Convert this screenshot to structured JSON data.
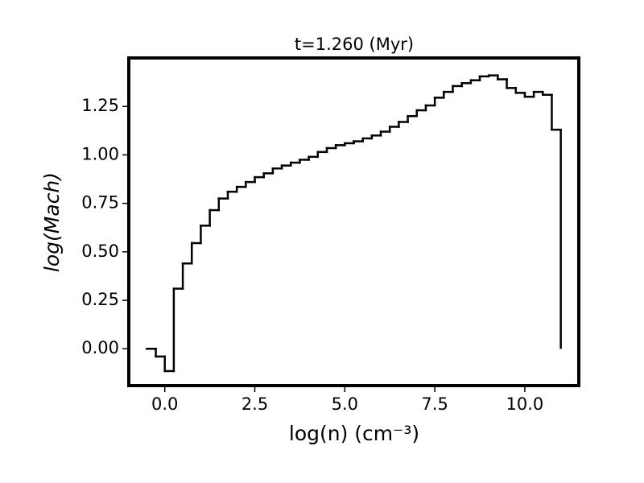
{
  "chart_data": {
    "type": "histogram",
    "title": "t=1.260 (Myr)",
    "xlabel": "log(n) (cm⁻³)",
    "ylabel": "log(Mach)",
    "bins": [
      -0.5,
      -0.25,
      0,
      0.25,
      0.5,
      0.75,
      1,
      1.25,
      1.5,
      1.75,
      2,
      2.25,
      2.5,
      2.75,
      3,
      3.25,
      3.5,
      3.75,
      4,
      4.25,
      4.5,
      4.75,
      5,
      5.25,
      5.5,
      5.75,
      6,
      6.25,
      6.5,
      6.75,
      7,
      7.25,
      7.5,
      7.75,
      8,
      8.25,
      8.5,
      8.75,
      9,
      9.25,
      9.5,
      9.75,
      10,
      10.25,
      10.5,
      10.75,
      11
    ],
    "values": [
      0.0,
      -0.04,
      -0.115,
      0.31,
      0.44,
      0.545,
      0.635,
      0.715,
      0.775,
      0.81,
      0.835,
      0.86,
      0.885,
      0.905,
      0.93,
      0.945,
      0.96,
      0.975,
      0.99,
      1.015,
      1.035,
      1.05,
      1.06,
      1.07,
      1.085,
      1.1,
      1.12,
      1.145,
      1.17,
      1.2,
      1.23,
      1.255,
      1.295,
      1.325,
      1.355,
      1.37,
      1.385,
      1.405,
      1.41,
      1.39,
      1.345,
      1.32,
      1.3,
      1.325,
      1.31,
      1.13
    ],
    "color": "#000000",
    "xlim": [
      -1.0,
      11.5
    ],
    "ylim": [
      -0.19,
      1.5
    ],
    "xticks": [
      {
        "value": 0,
        "label": "0.0"
      },
      2.5,
      {
        "value": 5,
        "label": "5.0"
      },
      7.5,
      {
        "value": 10,
        "label": "10.0"
      }
    ],
    "yticks": [
      {
        "value": 0,
        "label": "0.00"
      },
      0.25,
      {
        "value": 0.5,
        "label": "0.50"
      },
      0.75,
      {
        "value": 1,
        "label": "1.00"
      },
      1.25
    ]
  }
}
